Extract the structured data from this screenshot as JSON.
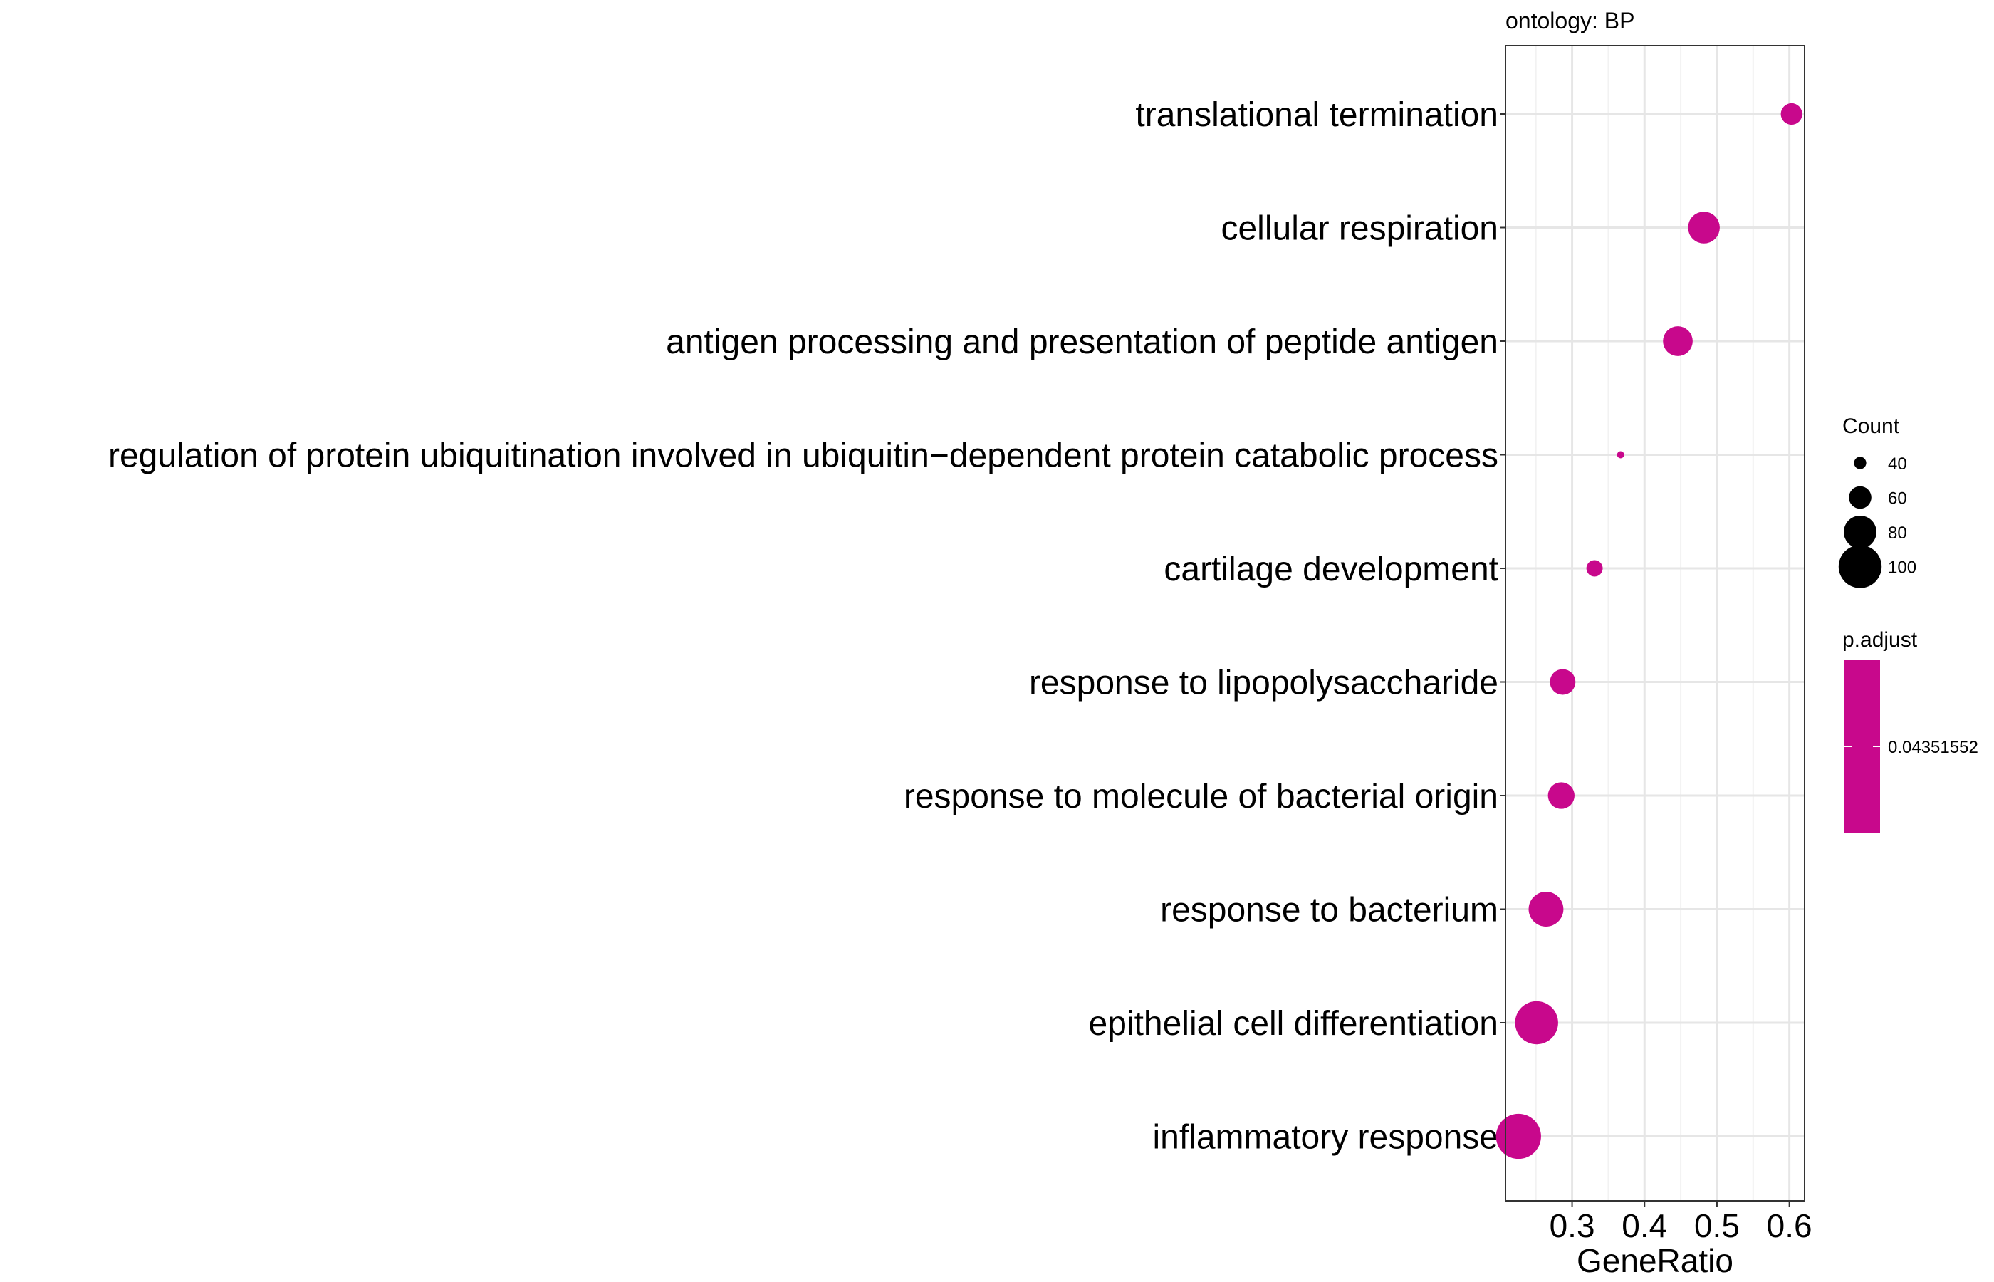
{
  "chart_data": {
    "type": "scatter",
    "facet_label": "ontology: BP",
    "xlabel": "GeneRatio",
    "ylabel": "",
    "xlim": [
      0.208,
      0.621
    ],
    "x_ticks": [
      0.3,
      0.4,
      0.5,
      0.6
    ],
    "x_tick_labels": [
      "0.3",
      "0.4",
      "0.5",
      "0.6"
    ],
    "x_minor_ticks": [
      0.25,
      0.35,
      0.45,
      0.55
    ],
    "grid": true,
    "legend_position": "right",
    "point_color": "#C8088C",
    "categories": [
      "translational termination",
      "cellular respiration",
      "antigen processing and presentation of peptide antigen",
      "regulation of protein ubiquitination involved in ubiquitin−dependent protein catabolic process",
      "cartilage development",
      "response to lipopolysaccharide",
      "response to molecule of bacterial origin",
      "response to bacterium",
      "epithelial cell differentiation",
      "inflammatory response"
    ],
    "points": [
      {
        "term": "translational termination",
        "x": 0.603,
        "count": 58
      },
      {
        "term": "cellular respiration",
        "x": 0.482,
        "count": 78
      },
      {
        "term": "antigen processing and presentation of peptide antigen",
        "x": 0.446,
        "count": 74
      },
      {
        "term": "regulation of protein ubiquitination involved in ubiquitin−dependent protein catabolic process",
        "x": 0.367,
        "count": 30
      },
      {
        "term": "cartilage development",
        "x": 0.331,
        "count": 48
      },
      {
        "term": "response to lipopolysaccharide",
        "x": 0.287,
        "count": 66
      },
      {
        "term": "response to molecule of bacterial origin",
        "x": 0.285,
        "count": 68
      },
      {
        "term": "response to bacterium",
        "x": 0.264,
        "count": 84
      },
      {
        "term": "epithelial cell differentiation",
        "x": 0.251,
        "count": 100
      },
      {
        "term": "inflammatory response",
        "x": 0.226,
        "count": 104
      }
    ],
    "size_legend": {
      "title": "Count",
      "values": [
        40,
        60,
        80,
        100
      ],
      "labels": [
        "40",
        "60",
        "80",
        "100"
      ]
    },
    "color_legend": {
      "title": "p.adjust",
      "tick_label": "0.04351552",
      "color": "#C8088C"
    }
  }
}
